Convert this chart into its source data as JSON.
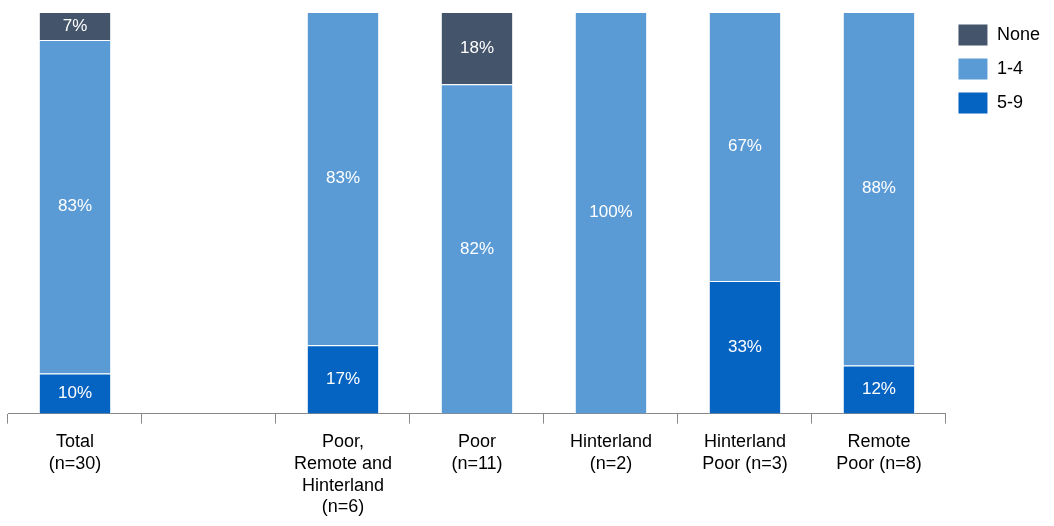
{
  "chart_data": {
    "type": "bar",
    "stacked": true,
    "legend": "top right",
    "grid": false,
    "categories": [
      "Total (n=30)",
      null,
      "Poor, Remote and Hinterland (n=6)",
      "Poor (n=11)",
      "Hinterland (n=2)",
      "Hinterland Poor (n=3)",
      "Remote Poor (n=8)"
    ],
    "series": [
      {
        "name": "5-9",
        "color": "#0563c1",
        "values": [
          10,
          null,
          17,
          null,
          null,
          33,
          12
        ],
        "value_labels": [
          "10%",
          null,
          "17%",
          null,
          null,
          "33%",
          "12%"
        ]
      },
      {
        "name": "1-4",
        "color": "#5b9bd5",
        "values": [
          83,
          null,
          83,
          82,
          100,
          67,
          88
        ],
        "value_labels": [
          "83%",
          null,
          "83%",
          "82%",
          "100%",
          "67%",
          "88%"
        ]
      },
      {
        "name": "None",
        "color": "#44546a",
        "values": [
          7,
          null,
          null,
          18,
          null,
          null,
          null
        ],
        "value_labels": [
          "7%",
          null,
          null,
          "18%",
          null,
          null,
          null
        ]
      }
    ]
  }
}
